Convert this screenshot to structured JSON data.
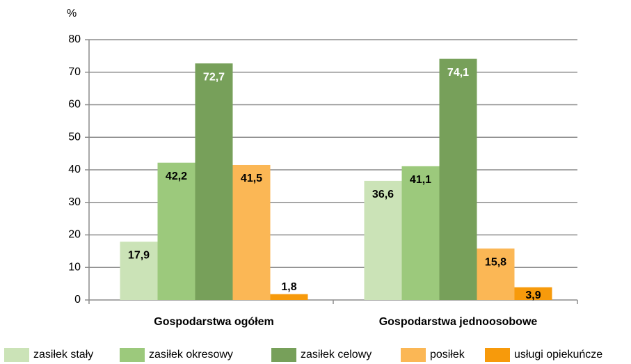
{
  "chart_data": {
    "type": "bar",
    "y_label": "%",
    "categories": [
      "Gospodarstwa ogółem",
      "Gospodarstwa jednoosobowe"
    ],
    "series": [
      {
        "name": "zasiłek stały",
        "color": "#cbe3b7",
        "values": [
          17.9,
          36.6
        ],
        "value_labels": [
          "17,9",
          "36,6"
        ]
      },
      {
        "name": "zasiłek okresowy",
        "color": "#9cc97c",
        "values": [
          42.2,
          41.1
        ],
        "value_labels": [
          "42,2",
          "41,1"
        ]
      },
      {
        "name": "zasiłek celowy",
        "color": "#77a05a",
        "values": [
          72.7,
          74.1
        ],
        "value_labels": [
          "72,7",
          "74,1"
        ]
      },
      {
        "name": "posiłek",
        "color": "#fbb755",
        "values": [
          41.5,
          15.8
        ],
        "value_labels": [
          "41,5",
          "15,8"
        ]
      },
      {
        "name": "usługi opiekuńcze",
        "color": "#f79a0b",
        "values": [
          1.8,
          3.9
        ],
        "value_labels": [
          "1,8",
          "3,9"
        ]
      }
    ],
    "ylim": [
      0,
      80
    ],
    "yticks": [
      0,
      10,
      20,
      30,
      40,
      50,
      60,
      70,
      80
    ],
    "grid": true
  }
}
